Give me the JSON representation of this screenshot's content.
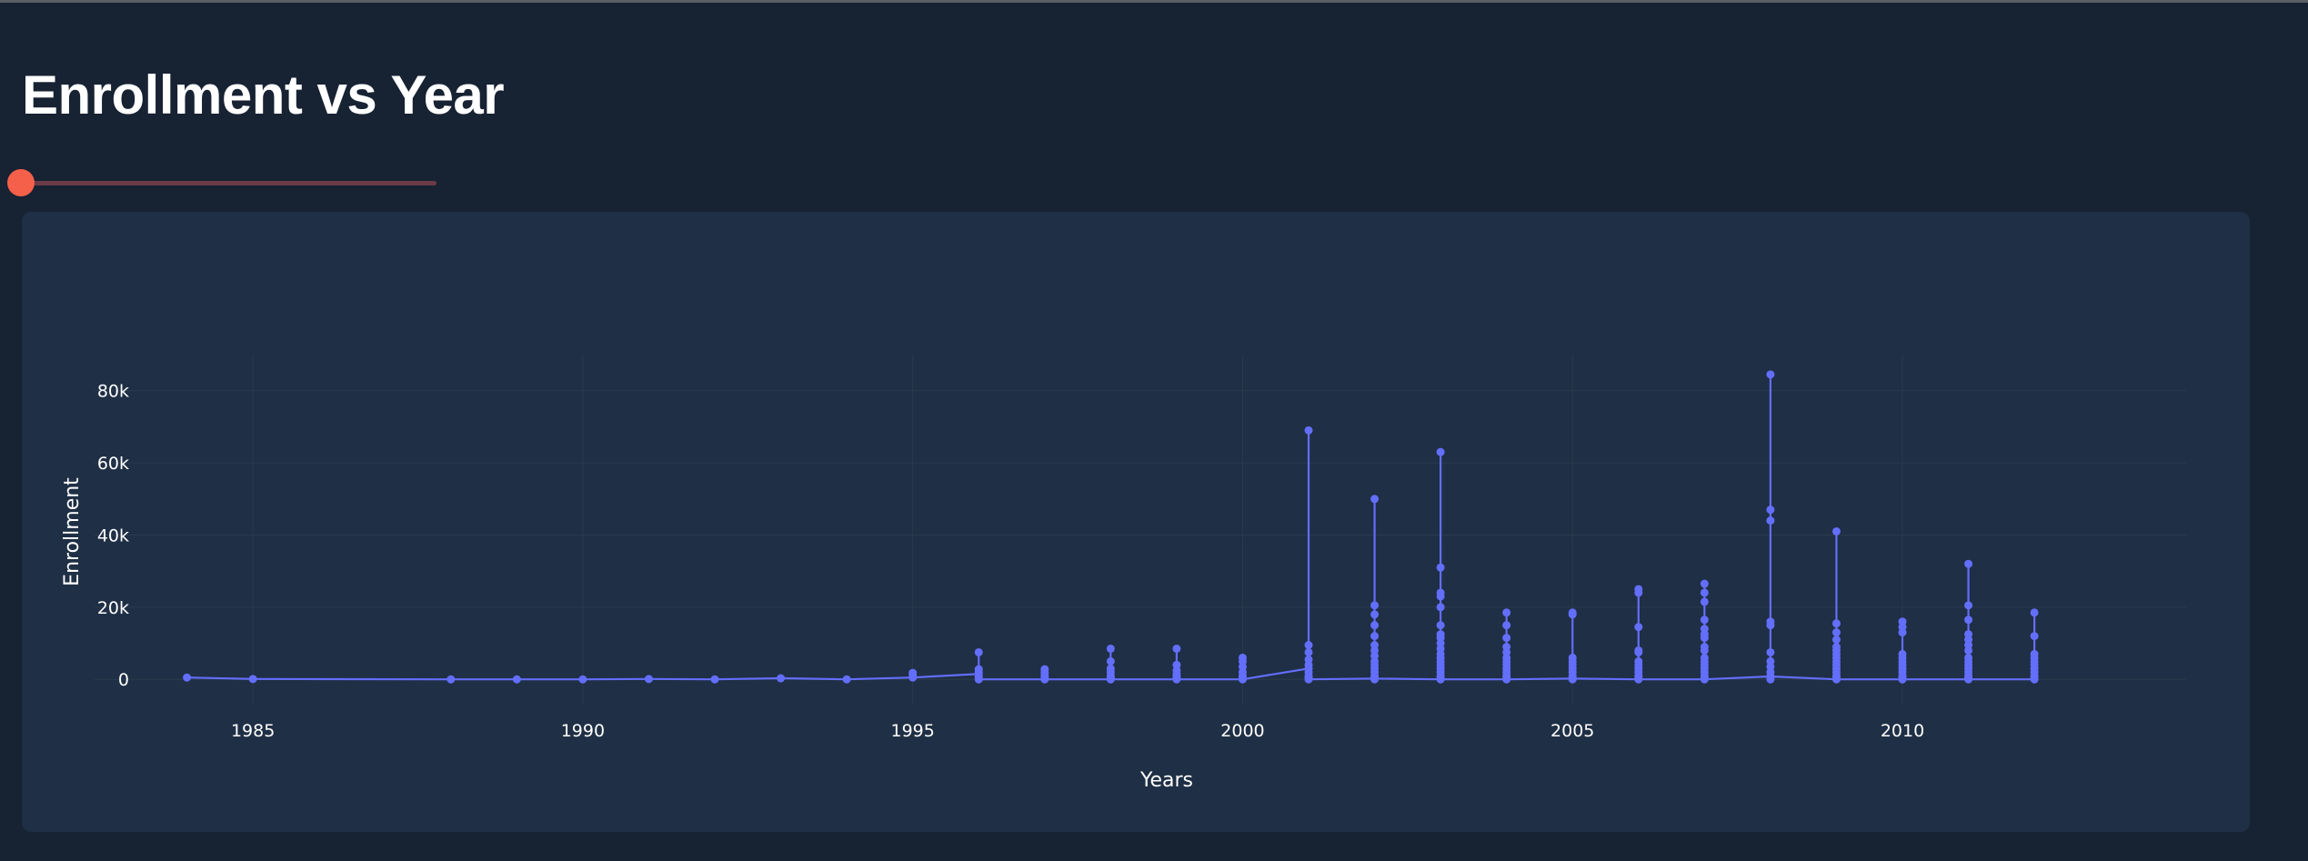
{
  "page": {
    "title": "Enrollment vs Year"
  },
  "slider": {
    "value_fraction": 0,
    "thumb_color": "#f4604a",
    "track_color": "#6b3b47"
  },
  "colors": {
    "background": "#172233",
    "card": "#1f2f45",
    "series": "#636efa",
    "grid": "#2b3a4d"
  },
  "chart_data": {
    "type": "line",
    "xlabel": "Years",
    "ylabel": "Enrollment",
    "xlim": [
      1982.6,
      2014.3
    ],
    "ylim": [
      -7000,
      90000
    ],
    "x_ticks": [
      1985,
      1990,
      1995,
      2000,
      2005,
      2010
    ],
    "y_ticks": [
      0,
      20000,
      40000,
      60000,
      80000
    ],
    "y_tick_labels": [
      "0",
      "20k",
      "40k",
      "60k",
      "80k"
    ],
    "grid": true,
    "legend": "none",
    "series": [
      {
        "connected_path": [
          [
            1984,
            500
          ],
          [
            1985,
            100
          ],
          [
            1988,
            0
          ],
          [
            1989,
            0
          ],
          [
            1990,
            0
          ],
          [
            1991,
            100
          ],
          [
            1992,
            0
          ],
          [
            1993,
            300
          ],
          [
            1994,
            0
          ],
          [
            1995,
            500
          ],
          [
            1996,
            1500
          ],
          [
            1996,
            0
          ],
          [
            1997,
            0
          ],
          [
            1998,
            0
          ],
          [
            1999,
            0
          ],
          [
            2000,
            0
          ],
          [
            2001,
            3000
          ],
          [
            2001,
            0
          ],
          [
            2002,
            200
          ],
          [
            2003,
            0
          ],
          [
            2004,
            0
          ],
          [
            2005,
            200
          ],
          [
            2006,
            0
          ],
          [
            2007,
            0
          ],
          [
            2008,
            800
          ],
          [
            2009,
            0
          ],
          [
            2010,
            0
          ],
          [
            2011,
            0
          ],
          [
            2012,
            0
          ]
        ],
        "points_by_year": [
          {
            "year": 1984,
            "values": [
              500
            ]
          },
          {
            "year": 1985,
            "values": [
              100
            ]
          },
          {
            "year": 1988,
            "values": [
              0
            ]
          },
          {
            "year": 1989,
            "values": [
              0
            ]
          },
          {
            "year": 1990,
            "values": [
              0
            ]
          },
          {
            "year": 1991,
            "values": [
              100
            ]
          },
          {
            "year": 1992,
            "values": [
              0
            ]
          },
          {
            "year": 1993,
            "values": [
              300
            ]
          },
          {
            "year": 1994,
            "values": [
              0
            ]
          },
          {
            "year": 1995,
            "values": [
              500,
              1200,
              1800
            ]
          },
          {
            "year": 1996,
            "values": [
              0,
              500,
              1000,
              1500,
              2000,
              2800,
              7500
            ]
          },
          {
            "year": 1997,
            "values": [
              0,
              500,
              1000,
              1800,
              2800
            ]
          },
          {
            "year": 1998,
            "values": [
              0,
              500,
              1000,
              2000,
              3000,
              5000,
              8500
            ]
          },
          {
            "year": 1999,
            "values": [
              0,
              500,
              1000,
              1500,
              2500,
              4000,
              8500
            ]
          },
          {
            "year": 2000,
            "values": [
              0,
              500,
              1000,
              2000,
              3500,
              5000,
              6000
            ]
          },
          {
            "year": 2001,
            "values": [
              0,
              500,
              1000,
              2000,
              3000,
              4000,
              5500,
              7500,
              9500,
              69000
            ]
          },
          {
            "year": 2002,
            "values": [
              0,
              500,
              1000,
              2000,
              3000,
              4000,
              5000,
              6500,
              8000,
              9500,
              12000,
              15000,
              18000,
              20500,
              50000
            ]
          },
          {
            "year": 2003,
            "values": [
              0,
              500,
              1000,
              2000,
              3000,
              4000,
              5000,
              6000,
              7000,
              8500,
              10000,
              11500,
              12500,
              15000,
              20000,
              23000,
              24000,
              31000,
              63000
            ]
          },
          {
            "year": 2004,
            "values": [
              0,
              500,
              1000,
              2000,
              3000,
              4000,
              5000,
              6000,
              7500,
              9000,
              11500,
              15000,
              18500
            ]
          },
          {
            "year": 2005,
            "values": [
              0,
              500,
              1000,
              2000,
              3000,
              4000,
              5000,
              6000,
              18000,
              18500
            ]
          },
          {
            "year": 2006,
            "values": [
              0,
              500,
              1000,
              2000,
              3000,
              4000,
              5000,
              7500,
              8000,
              14500,
              24000,
              25000
            ]
          },
          {
            "year": 2007,
            "values": [
              0,
              500,
              1000,
              2000,
              3000,
              4000,
              5000,
              6000,
              8000,
              9000,
              11500,
              12500,
              14000,
              16500,
              21500,
              24000,
              26500
            ]
          },
          {
            "year": 2008,
            "values": [
              0,
              500,
              800,
              2000,
              3500,
              5000,
              7500,
              15000,
              16000,
              44000,
              47000,
              84500
            ]
          },
          {
            "year": 2009,
            "values": [
              0,
              500,
              1000,
              2000,
              3000,
              4000,
              5000,
              6000,
              7000,
              8000,
              9000,
              11000,
              13000,
              15500,
              41000
            ]
          },
          {
            "year": 2010,
            "values": [
              0,
              500,
              1000,
              2000,
              3000,
              4000,
              5000,
              6000,
              7000,
              13000,
              14500,
              16000
            ]
          },
          {
            "year": 2011,
            "values": [
              0,
              500,
              1000,
              2000,
              3000,
              4000,
              5000,
              6000,
              8000,
              9500,
              11000,
              12500,
              16500,
              20500,
              32000
            ]
          },
          {
            "year": 2012,
            "values": [
              0,
              500,
              1000,
              2000,
              3000,
              4000,
              5000,
              6000,
              7000,
              12000,
              18500
            ]
          }
        ]
      }
    ]
  }
}
